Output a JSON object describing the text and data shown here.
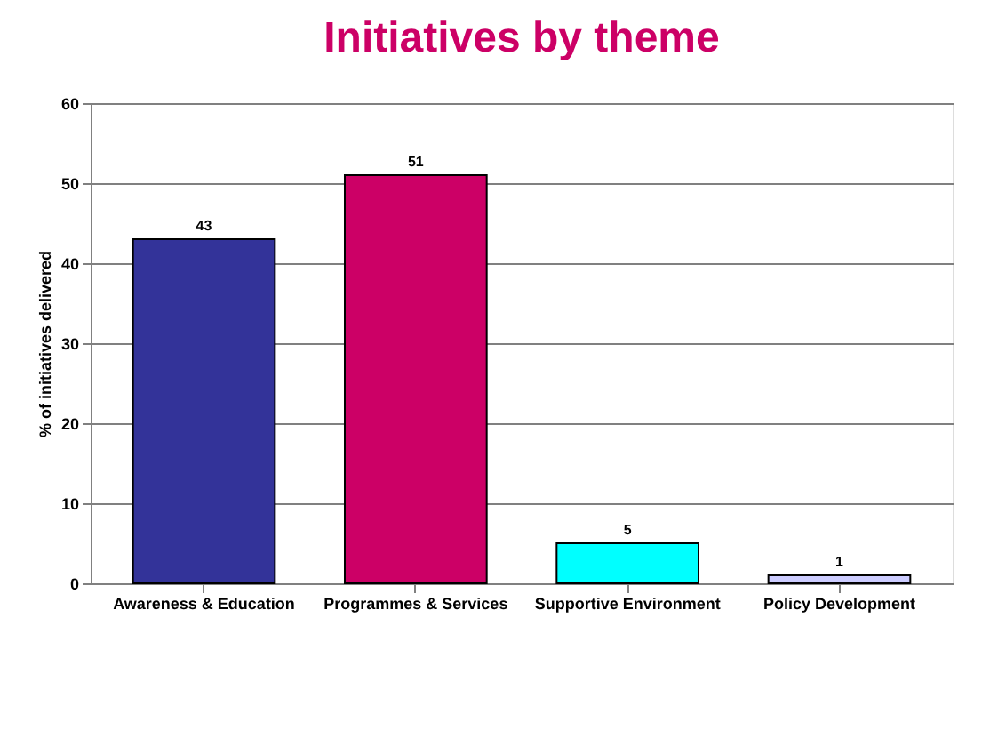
{
  "chart_data": {
    "type": "bar",
    "title": "Initiatives by theme",
    "ylabel": "% of initiatives delivered",
    "categories": [
      "Awareness & Education",
      "Programmes & Services",
      "Supportive Environment",
      "Policy Development"
    ],
    "values": [
      43,
      51,
      5,
      1
    ],
    "colors": [
      "#333399",
      "#cc0066",
      "#00ffff",
      "#ccccff"
    ],
    "ylim": [
      0,
      60
    ],
    "yticks": [
      0,
      10,
      20,
      30,
      40,
      50,
      60
    ],
    "grid": "y",
    "data_labels": true
  }
}
